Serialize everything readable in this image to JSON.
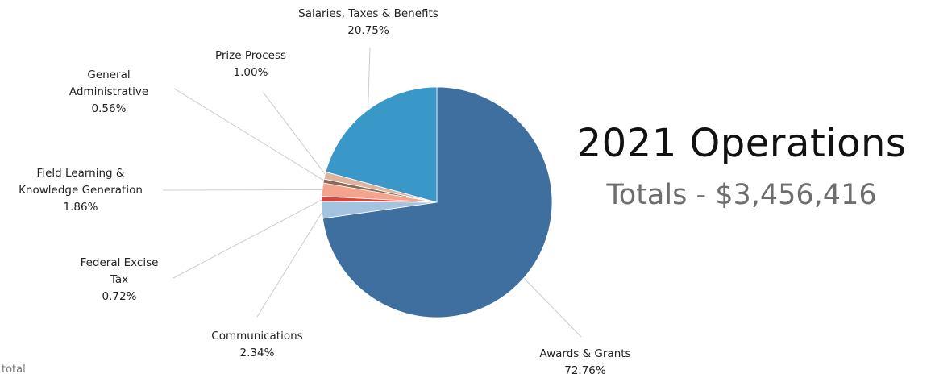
{
  "chart_data": {
    "type": "pie",
    "title": "2021 Operations",
    "subtitle": "Totals - $3,456,416",
    "slices": [
      {
        "label": "Awards & Grants",
        "value": 72.76,
        "value_label": "72.76%",
        "color": "#3f6f9f"
      },
      {
        "label": "Communications",
        "value": 2.34,
        "value_label": "2.34%",
        "color": "#a3c3e1"
      },
      {
        "label": "Federal Excise Tax",
        "value": 0.72,
        "value_label": "0.72%",
        "color": "#d8453d"
      },
      {
        "label": "Field Learning & Knowledge Generation",
        "value": 1.86,
        "value_label": "1.86%",
        "color": "#f4a48c"
      },
      {
        "label": "General Administrative",
        "value": 0.56,
        "value_label": "0.56%",
        "color": "#8a6a55"
      },
      {
        "label": "Prize Process",
        "value": 1.0,
        "value_label": "1.00%",
        "color": "#ddb59f"
      },
      {
        "label": "Salaries, Taxes & Benefits",
        "value": 20.75,
        "value_label": "20.75%",
        "color": "#3a98c9"
      }
    ]
  },
  "footer": {
    "text": "total"
  }
}
